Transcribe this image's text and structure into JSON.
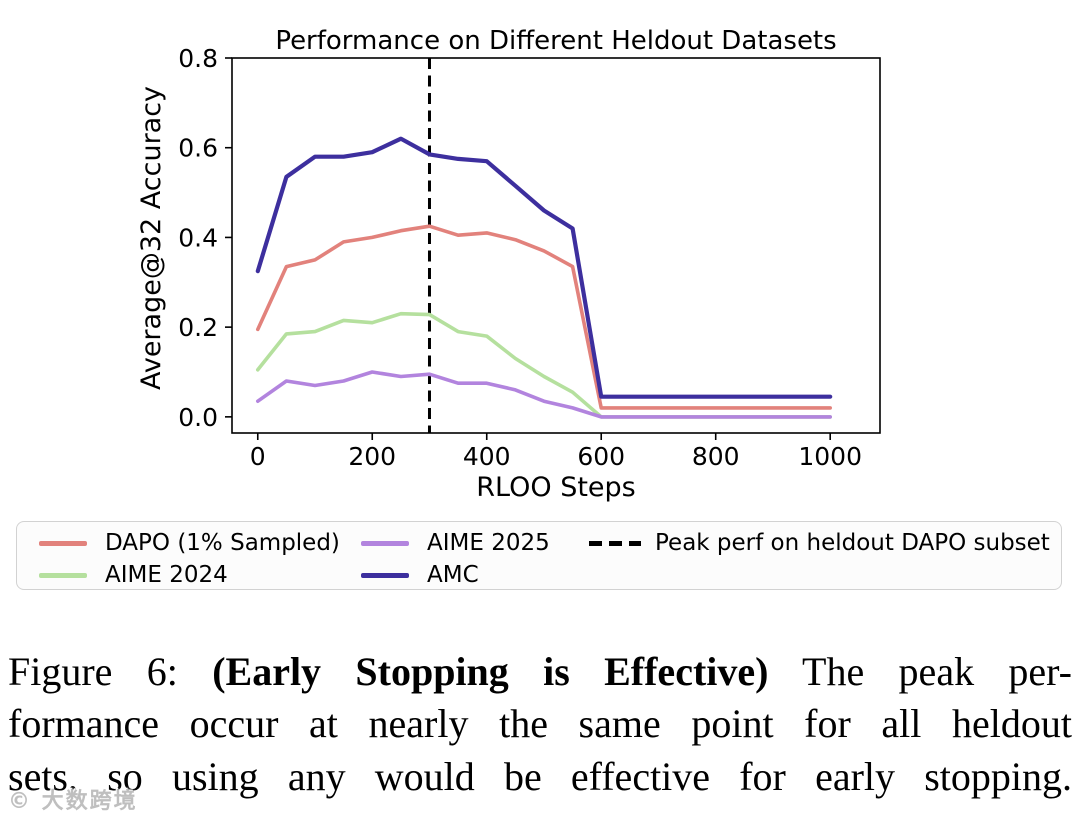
{
  "chart_data": {
    "type": "line",
    "title": "Performance on Different Heldout Datasets",
    "xlabel": "RLOO Steps",
    "ylabel": "Average@32 Accuracy",
    "xlim": [
      -45,
      1087
    ],
    "ylim": [
      -0.036,
      0.8
    ],
    "grid": false,
    "xticks": [
      0,
      200,
      400,
      600,
      800,
      1000
    ],
    "xtick_labels": [
      "0",
      "200",
      "400",
      "600",
      "800",
      "1000"
    ],
    "yticks": [
      0.0,
      0.2,
      0.4,
      0.6,
      0.8
    ],
    "ytick_labels": [
      "0.0",
      "0.2",
      "0.4",
      "0.6",
      "0.8"
    ],
    "x": [
      0,
      50,
      100,
      150,
      200,
      250,
      300,
      350,
      400,
      450,
      500,
      550,
      600,
      650,
      700,
      750,
      800,
      850,
      900,
      950,
      1000
    ],
    "series": [
      {
        "name": "DAPO (1% Sampled)",
        "color": "#e2827c",
        "values": [
          0.195,
          0.335,
          0.35,
          0.39,
          0.4,
          0.415,
          0.425,
          0.405,
          0.41,
          0.395,
          0.37,
          0.335,
          0.02,
          0.02,
          0.02,
          0.02,
          0.02,
          0.02,
          0.02,
          0.02,
          0.02
        ]
      },
      {
        "name": "AIME 2024",
        "color": "#b5e09e",
        "values": [
          0.105,
          0.185,
          0.19,
          0.215,
          0.21,
          0.23,
          0.228,
          0.19,
          0.18,
          0.13,
          0.09,
          0.055,
          0.0,
          0.0,
          0.0,
          0.0,
          0.0,
          0.0,
          0.0,
          0.0,
          0.0
        ]
      },
      {
        "name": "AIME 2025",
        "color": "#b284de",
        "values": [
          0.035,
          0.08,
          0.07,
          0.08,
          0.1,
          0.09,
          0.095,
          0.075,
          0.075,
          0.06,
          0.035,
          0.02,
          0.0,
          0.0,
          0.0,
          0.0,
          0.0,
          0.0,
          0.0,
          0.0,
          0.0
        ]
      },
      {
        "name": "AMC",
        "color": "#3d2f9e",
        "values": [
          0.325,
          0.535,
          0.58,
          0.58,
          0.59,
          0.62,
          0.585,
          0.575,
          0.57,
          0.515,
          0.46,
          0.42,
          0.045,
          0.045,
          0.045,
          0.045,
          0.045,
          0.045,
          0.045,
          0.045,
          0.045
        ]
      }
    ],
    "vline": {
      "x": 300,
      "style": "dashed",
      "color": "#000000",
      "label": "Peak perf on heldout DAPO subset"
    },
    "legend_position": "below"
  },
  "caption": {
    "line1_prefix": "Figure 6: ",
    "line1_bold": "(Early Stopping is Effective)",
    "line1_rest": " The peak per-",
    "line2": "formance occur at nearly the same point for all heldout",
    "line3": "sets, so using any would be effective for early stopping."
  },
  "watermark": {
    "icon": "©",
    "text": "大数跨境"
  }
}
